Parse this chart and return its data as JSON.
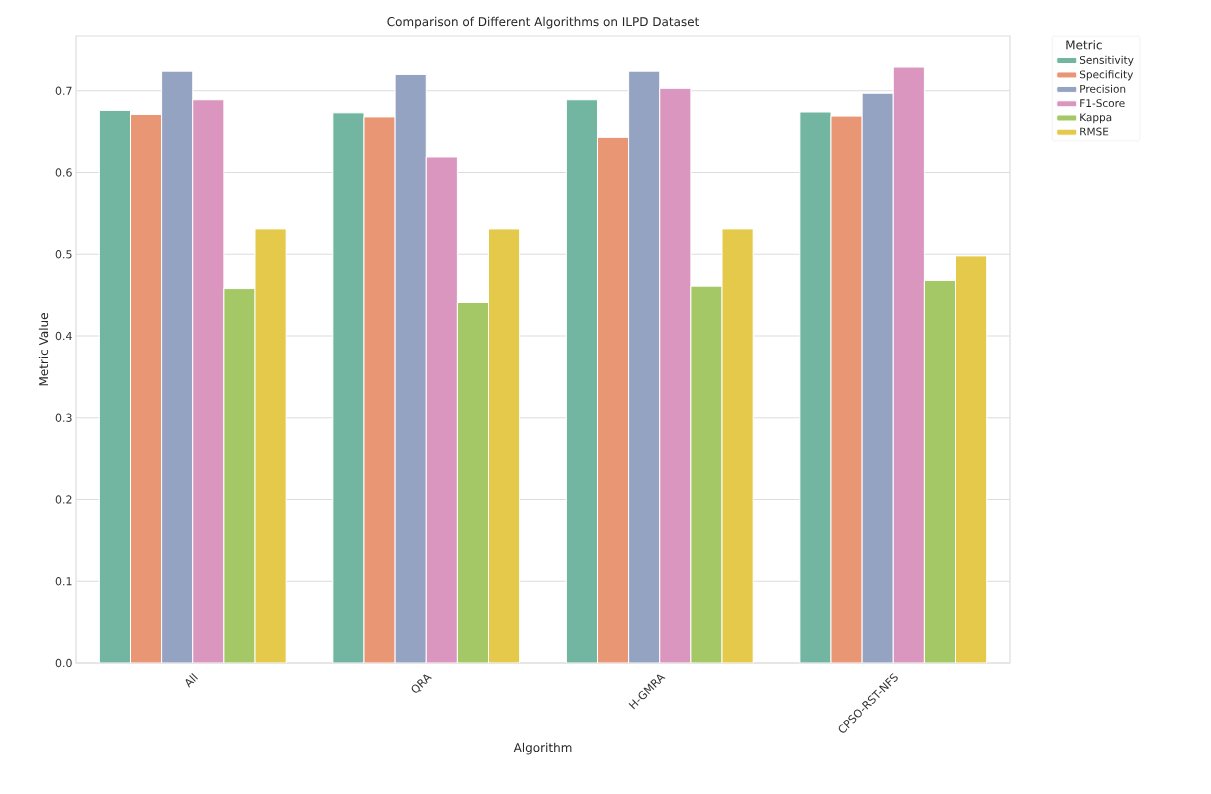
{
  "chart_data": {
    "type": "bar",
    "title": "Comparison of Different Algorithms on ILPD Dataset",
    "xlabel": "Algorithm",
    "ylabel": "Metric Value",
    "legend_title": "Metric",
    "categories": [
      "All",
      "QRA",
      "H-GMRA",
      "CPSO-RST-NFS"
    ],
    "series": [
      {
        "name": "Sensitivity",
        "color": "#72b6a1",
        "values": [
          0.676,
          0.673,
          0.689,
          0.674
        ]
      },
      {
        "name": "Specificity",
        "color": "#e99675",
        "values": [
          0.671,
          0.668,
          0.643,
          0.669
        ]
      },
      {
        "name": "Precision",
        "color": "#95a3c3",
        "values": [
          0.724,
          0.72,
          0.724,
          0.697
        ]
      },
      {
        "name": "F1-Score",
        "color": "#db96c0",
        "values": [
          0.689,
          0.619,
          0.703,
          0.729
        ]
      },
      {
        "name": "Kappa",
        "color": "#a4c865",
        "values": [
          0.458,
          0.441,
          0.461,
          0.468
        ]
      },
      {
        "name": "RMSE",
        "color": "#e5c94a",
        "values": [
          0.531,
          0.531,
          0.531,
          0.498
        ]
      }
    ],
    "ylim": [
      0,
      0.767
    ],
    "yticks": [
      {
        "value": 0,
        "label": "0.0"
      },
      0.1,
      0.2,
      0.3,
      0.4,
      0.5,
      0.6,
      0.7
    ],
    "grid": "y",
    "legend": "top right"
  }
}
